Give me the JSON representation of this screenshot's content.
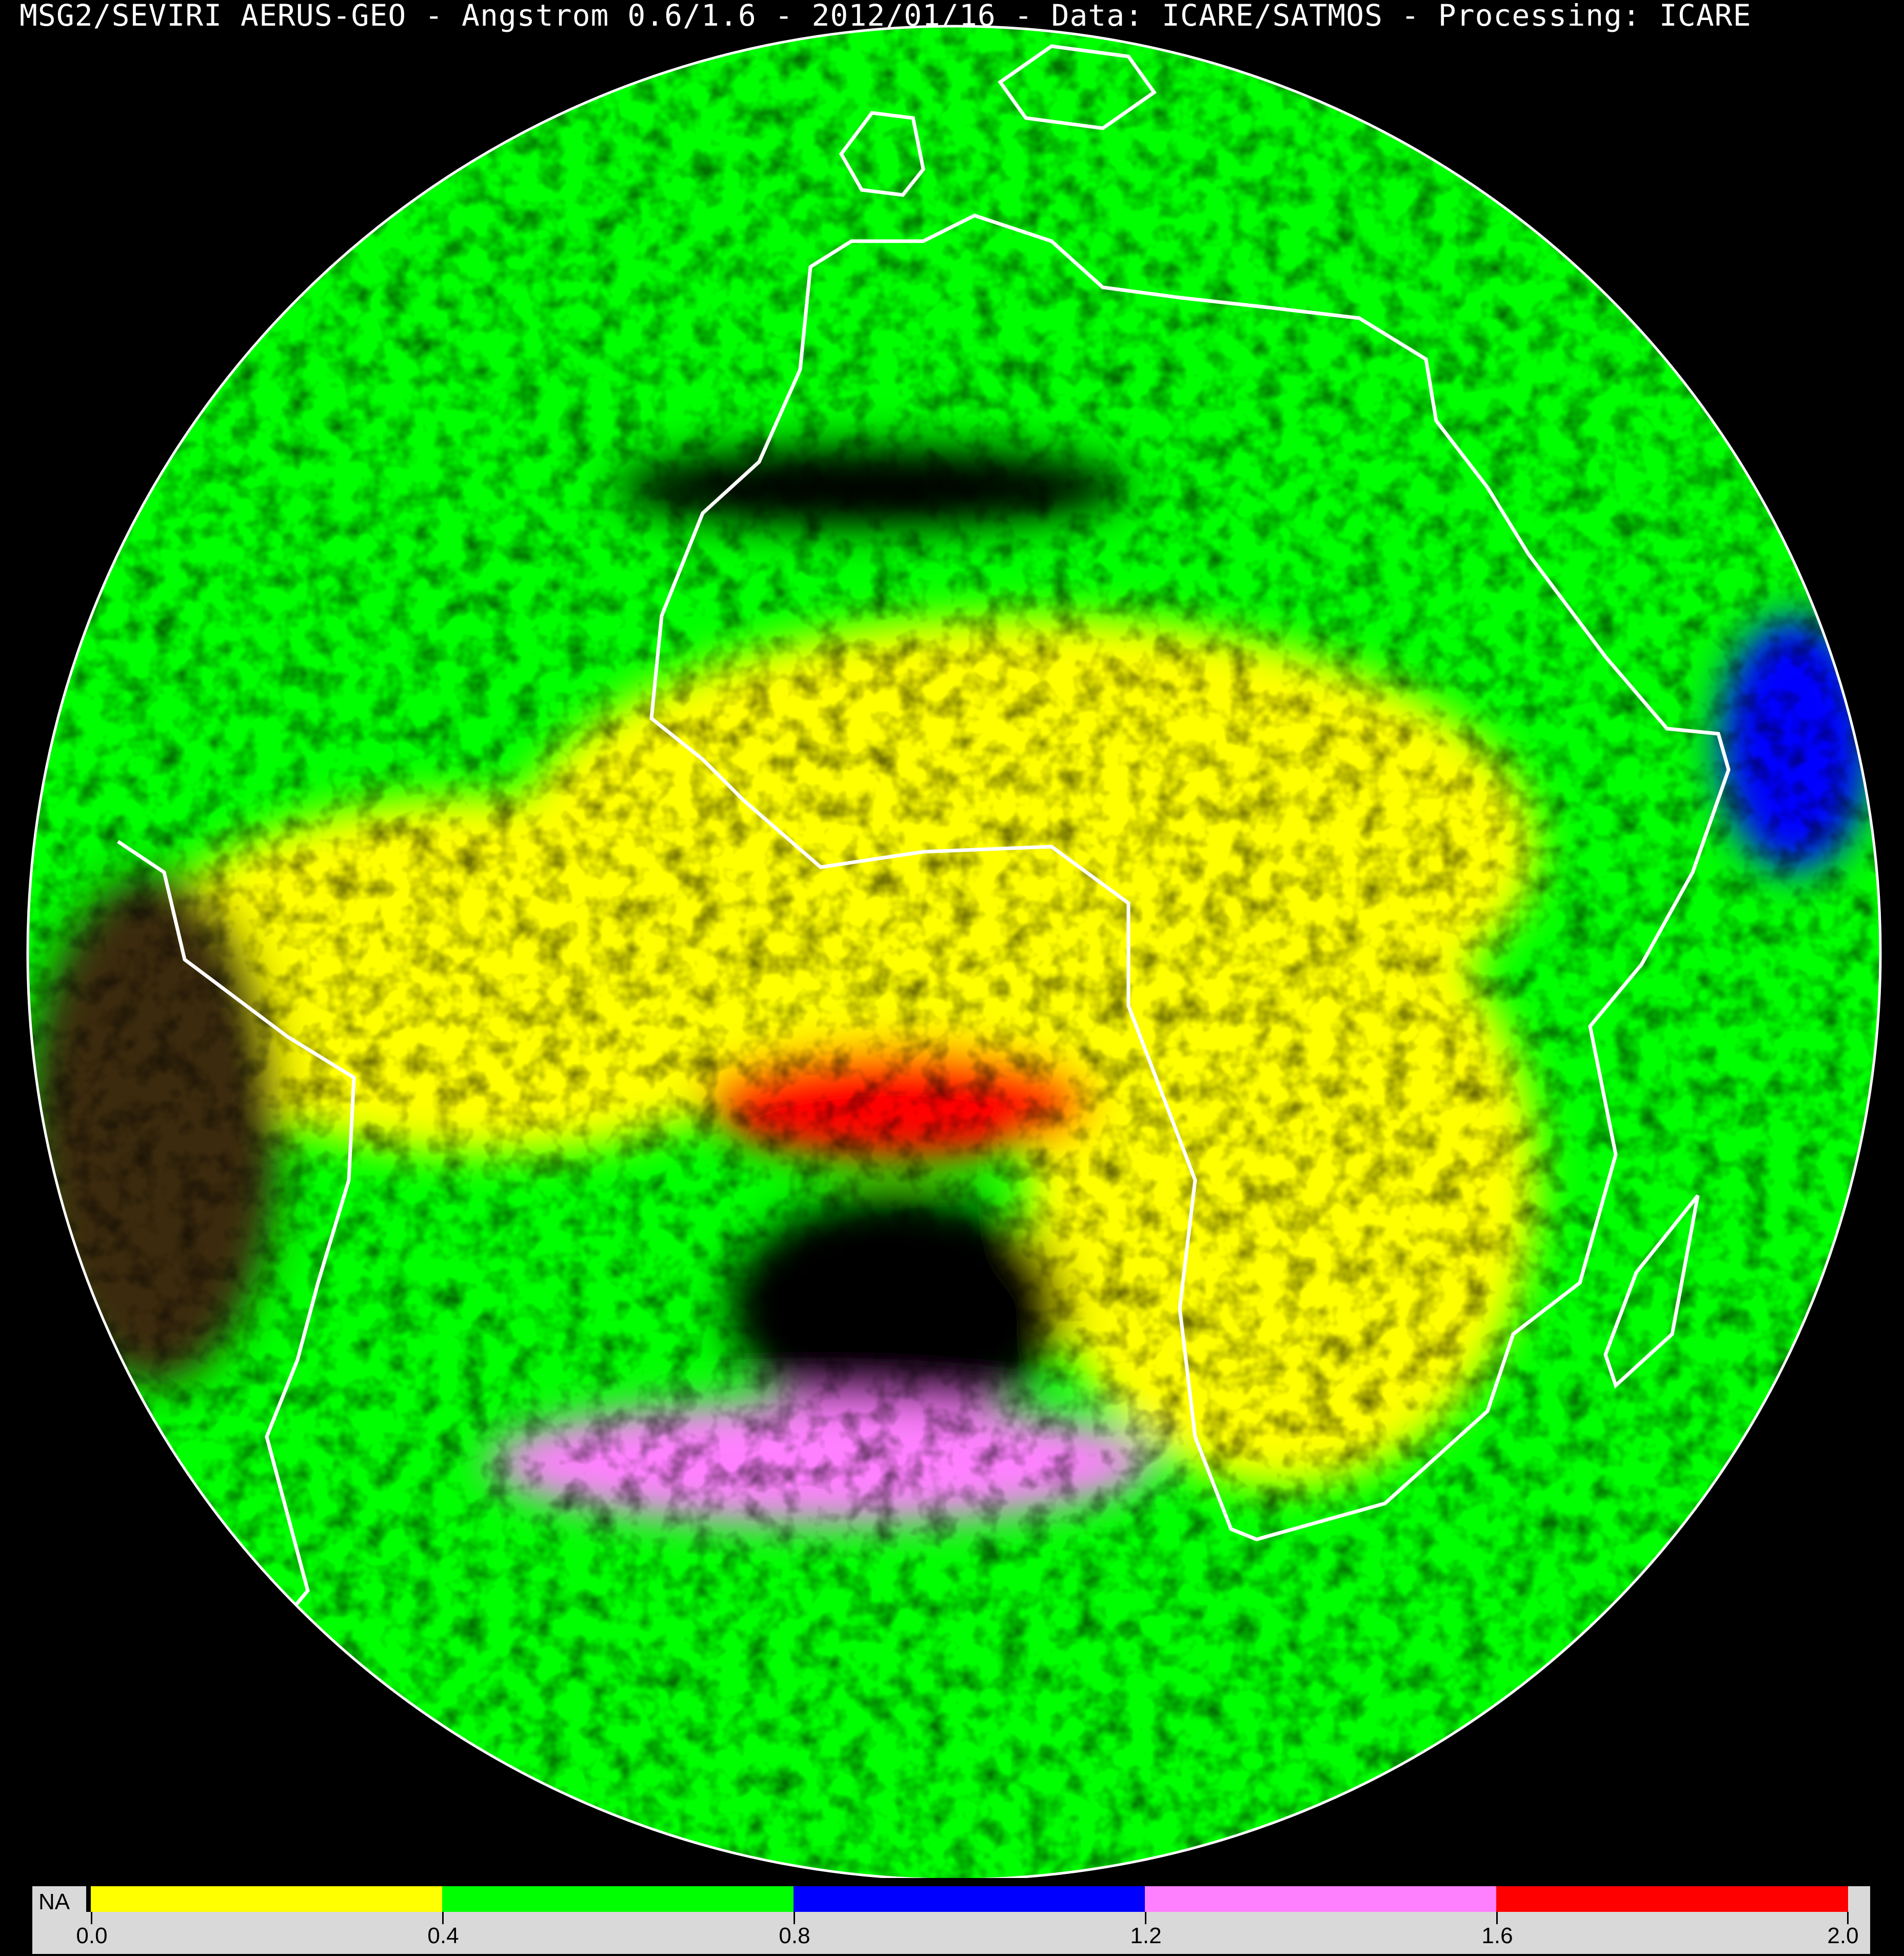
{
  "title": "MSG2/SEVIRI AERUS-GEO - Angstrom 0.6/1.6 - 2012/01/16 - Data: ICARE/SATMOS - Processing: ICARE",
  "map": {
    "projection": "geostationary full disk",
    "background": "#000000",
    "coastline_color": "#ffffff"
  },
  "legend": {
    "na_label": "NA",
    "na_color": "#000000",
    "bins": [
      {
        "from": 0.0,
        "to": 0.4,
        "color": "#ffff00"
      },
      {
        "from": 0.4,
        "to": 0.8,
        "color": "#00ff00"
      },
      {
        "from": 0.8,
        "to": 1.2,
        "color": "#0000ff"
      },
      {
        "from": 1.2,
        "to": 1.6,
        "color": "#ff80ff"
      },
      {
        "from": 1.6,
        "to": 2.0,
        "color": "#ff0000"
      }
    ],
    "ticks": [
      "0.0",
      "0.4",
      "0.8",
      "1.2",
      "1.6",
      "2.0"
    ]
  }
}
